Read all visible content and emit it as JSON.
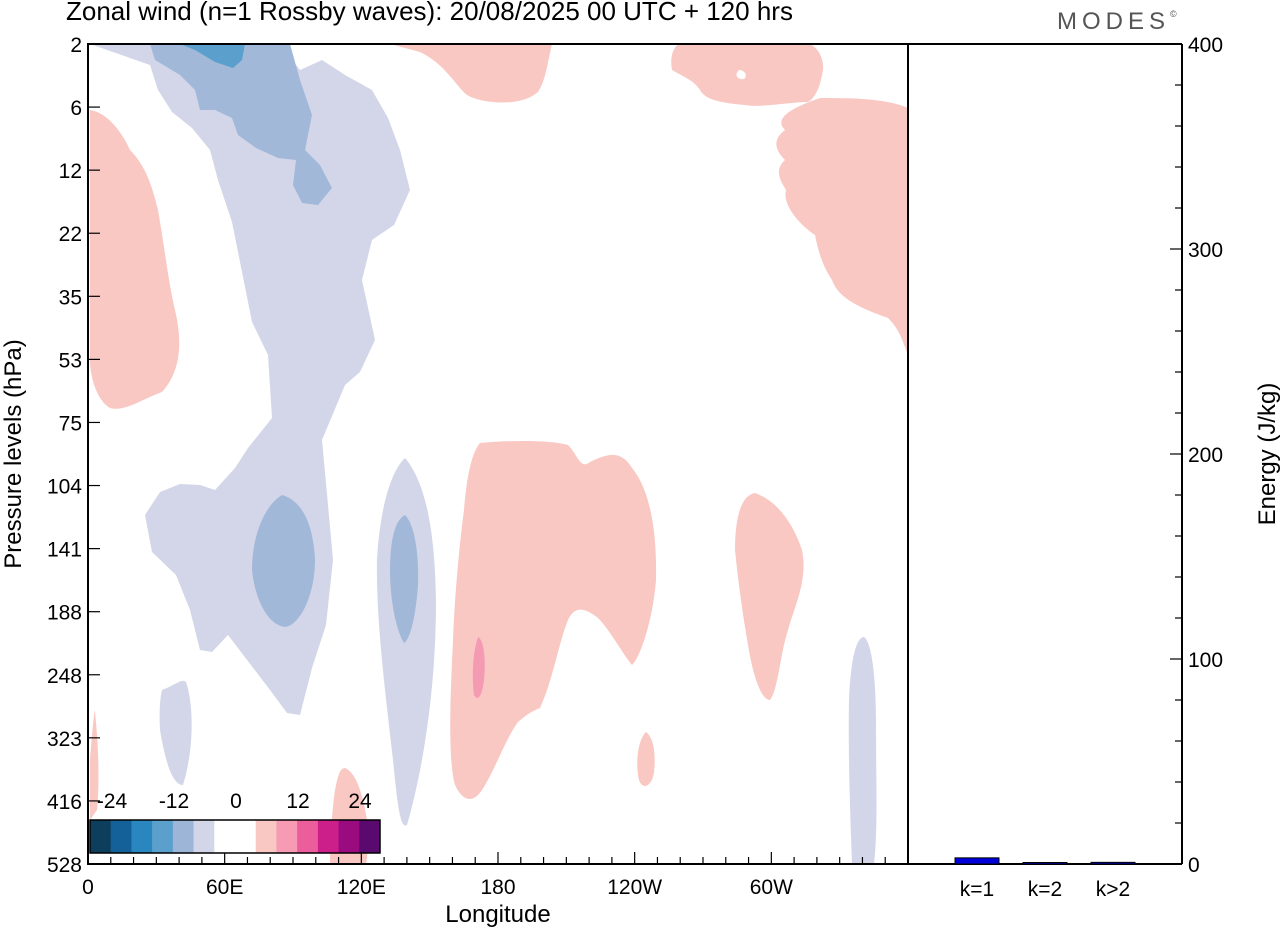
{
  "header": {
    "title": "Zonal wind (n=1 Rossby waves):  20/08/2025  00 UTC  + 120 hrs",
    "brand": "MODES"
  },
  "chart_data": [
    {
      "type": "heatmap",
      "title": "Zonal wind (n=1 Rossby waves):  20/08/2025  00 UTC  + 120 hrs",
      "xlabel": "Longitude",
      "ylabel": "Pressure levels (hPa)",
      "x_ticks": [
        "0",
        "60E",
        "120E",
        "180",
        "120W",
        "60W"
      ],
      "x_tick_degrees": [
        0,
        60,
        120,
        180,
        240,
        300
      ],
      "xlim": [
        0,
        360
      ],
      "y_ticks": [
        "2",
        "6",
        "12",
        "22",
        "35",
        "53",
        "75",
        "104",
        "141",
        "188",
        "248",
        "323",
        "416",
        "528"
      ],
      "colorbar": {
        "labels": [
          "-24",
          "-12",
          "0",
          "12",
          "24"
        ],
        "colors": [
          "#0d3e5c",
          "#14619a",
          "#2a86bf",
          "#5b9fcd",
          "#9db6d8",
          "#d3d6e8",
          "#ffffff",
          "#ffffff",
          "#f9c8c3",
          "#f79ab3",
          "#ec5d9c",
          "#cc1f8a",
          "#9a0b80",
          "#5a0a6e"
        ]
      },
      "colors": {
        "neg_light": "#d3d6e8",
        "neg_mid": "#a1b8d9",
        "neg_strong": "#5b9fcd",
        "pos_light": "#f9c8c3",
        "pos_mid": "#f59ab3"
      }
    },
    {
      "type": "bar",
      "ylabel": "Energy (J/kg)",
      "categories": [
        "k=1",
        "k=2",
        "k>2"
      ],
      "values": [
        3,
        0.3,
        0.8
      ],
      "ylim": [
        0,
        400
      ],
      "y_ticks": [
        "0",
        "100",
        "200",
        "300",
        "400"
      ],
      "bar_color": "#0000dd"
    }
  ]
}
